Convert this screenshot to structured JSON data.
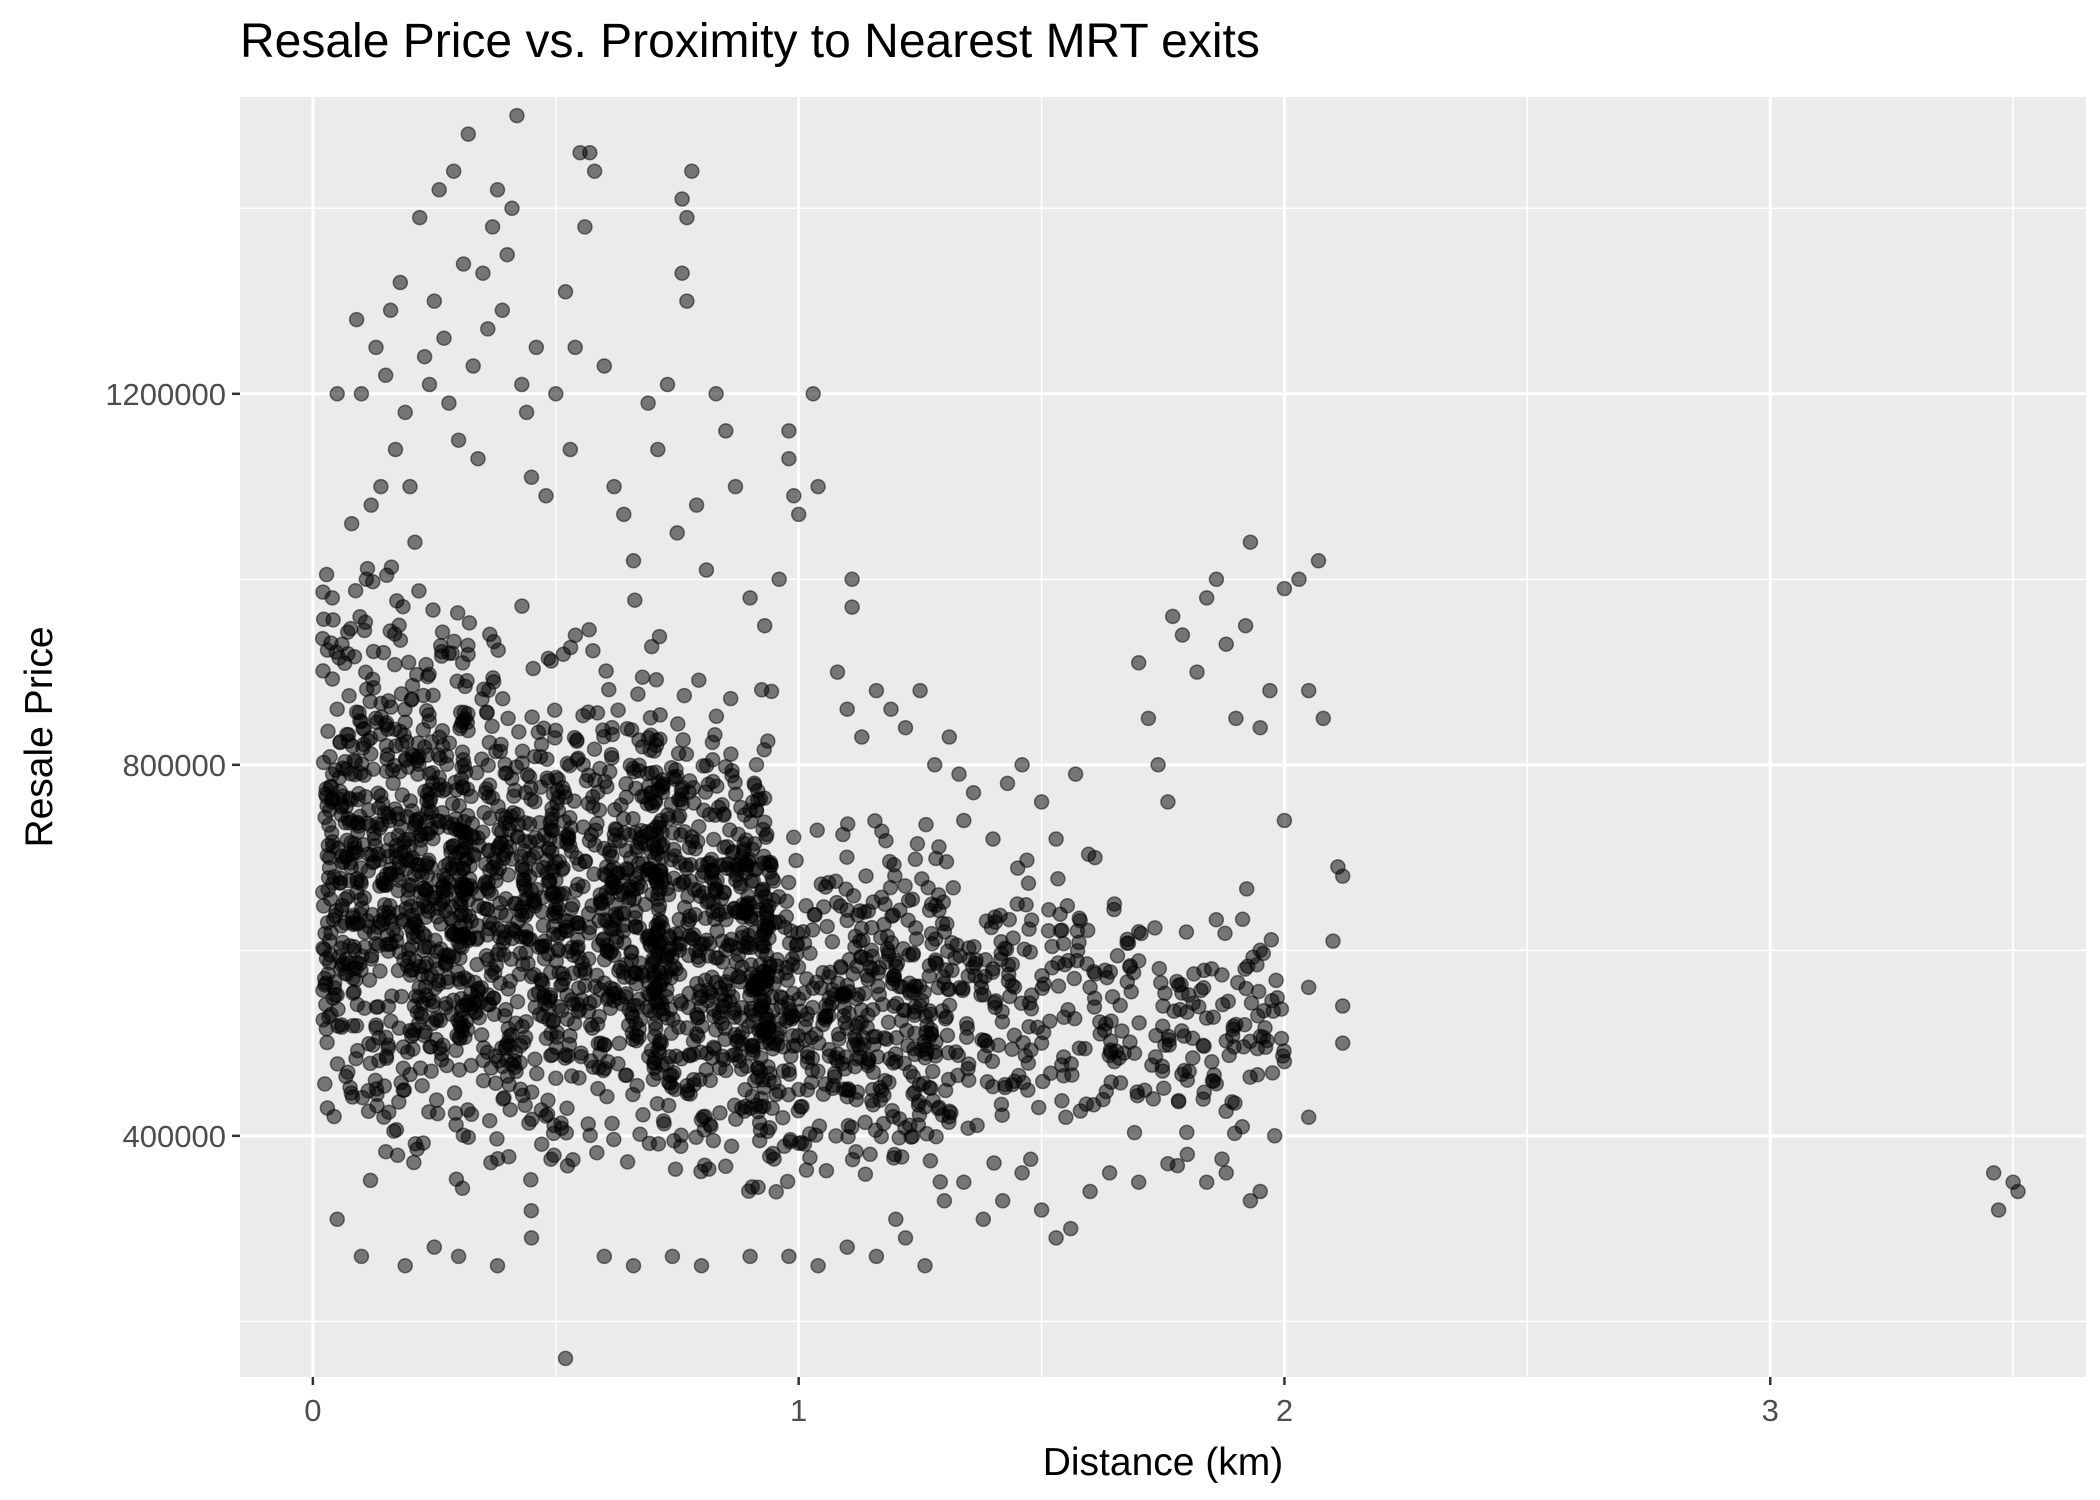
{
  "chart_data": {
    "type": "scatter",
    "title": "Resale Price vs. Proximity to Nearest MRT exits",
    "xlabel": "Distance (km)",
    "ylabel": "Resale Price",
    "xlim": [
      -0.15,
      3.65
    ],
    "ylim": [
      140000,
      1520000
    ],
    "x_ticks": [
      0,
      1,
      2,
      3
    ],
    "x_tick_labels": [
      "0",
      "1",
      "2",
      "3"
    ],
    "y_ticks": [
      400000,
      800000,
      1200000
    ],
    "y_tick_labels": [
      "400000",
      "800000",
      "1200000"
    ],
    "grid": true,
    "legend": "none",
    "point_color": "#000000",
    "point_alpha": 0.5,
    "panel_background": "#ebebeb",
    "grid_color": "#ffffff",
    "points": [
      [
        0.03,
        430000
      ],
      [
        0.04,
        980000
      ],
      [
        0.05,
        1200000
      ],
      [
        0.05,
        860000
      ],
      [
        0.06,
        930000
      ],
      [
        0.08,
        1060000
      ],
      [
        0.09,
        1280000
      ],
      [
        0.1,
        1200000
      ],
      [
        0.11,
        1000000
      ],
      [
        0.12,
        1080000
      ],
      [
        0.13,
        1250000
      ],
      [
        0.14,
        1100000
      ],
      [
        0.15,
        1220000
      ],
      [
        0.16,
        1290000
      ],
      [
        0.17,
        1140000
      ],
      [
        0.18,
        1320000
      ],
      [
        0.19,
        1180000
      ],
      [
        0.2,
        1100000
      ],
      [
        0.21,
        1040000
      ],
      [
        0.22,
        1390000
      ],
      [
        0.23,
        1240000
      ],
      [
        0.24,
        1210000
      ],
      [
        0.25,
        1300000
      ],
      [
        0.26,
        1420000
      ],
      [
        0.27,
        1260000
      ],
      [
        0.28,
        1190000
      ],
      [
        0.29,
        1440000
      ],
      [
        0.3,
        1150000
      ],
      [
        0.31,
        1340000
      ],
      [
        0.32,
        1480000
      ],
      [
        0.33,
        1230000
      ],
      [
        0.34,
        1130000
      ],
      [
        0.35,
        1330000
      ],
      [
        0.36,
        1270000
      ],
      [
        0.37,
        1380000
      ],
      [
        0.38,
        1420000
      ],
      [
        0.39,
        1290000
      ],
      [
        0.4,
        1350000
      ],
      [
        0.41,
        1400000
      ],
      [
        0.42,
        1500000
      ],
      [
        0.43,
        1210000
      ],
      [
        0.44,
        1180000
      ],
      [
        0.45,
        1110000
      ],
      [
        0.46,
        1250000
      ],
      [
        0.48,
        1090000
      ],
      [
        0.5,
        1200000
      ],
      [
        0.52,
        1310000
      ],
      [
        0.53,
        1140000
      ],
      [
        0.54,
        1250000
      ],
      [
        0.55,
        1460000
      ],
      [
        0.56,
        1380000
      ],
      [
        0.57,
        1460000
      ],
      [
        0.58,
        1440000
      ],
      [
        0.6,
        1230000
      ],
      [
        0.62,
        1100000
      ],
      [
        0.64,
        1070000
      ],
      [
        0.66,
        1020000
      ],
      [
        0.69,
        1190000
      ],
      [
        0.71,
        1140000
      ],
      [
        0.73,
        1210000
      ],
      [
        0.75,
        1050000
      ],
      [
        0.76,
        1410000
      ],
      [
        0.76,
        1330000
      ],
      [
        0.77,
        1300000
      ],
      [
        0.77,
        1390000
      ],
      [
        0.78,
        1440000
      ],
      [
        0.79,
        1080000
      ],
      [
        0.81,
        1010000
      ],
      [
        0.83,
        1200000
      ],
      [
        0.85,
        1160000
      ],
      [
        0.87,
        1100000
      ],
      [
        0.9,
        980000
      ],
      [
        0.93,
        950000
      ],
      [
        0.96,
        1000000
      ],
      [
        0.98,
        1160000
      ],
      [
        0.98,
        1130000
      ],
      [
        0.99,
        1090000
      ],
      [
        1.0,
        1070000
      ],
      [
        1.03,
        1200000
      ],
      [
        1.04,
        1100000
      ],
      [
        1.08,
        900000
      ],
      [
        1.1,
        860000
      ],
      [
        1.11,
        970000
      ],
      [
        1.11,
        1000000
      ],
      [
        1.13,
        830000
      ],
      [
        1.16,
        880000
      ],
      [
        1.19,
        860000
      ],
      [
        1.22,
        840000
      ],
      [
        1.25,
        880000
      ],
      [
        1.28,
        800000
      ],
      [
        1.31,
        830000
      ],
      [
        1.33,
        790000
      ],
      [
        1.34,
        740000
      ],
      [
        1.36,
        770000
      ],
      [
        1.4,
        720000
      ],
      [
        1.43,
        780000
      ],
      [
        1.46,
        800000
      ],
      [
        1.5,
        760000
      ],
      [
        1.53,
        720000
      ],
      [
        1.57,
        790000
      ],
      [
        1.61,
        700000
      ],
      [
        1.65,
        650000
      ],
      [
        1.7,
        910000
      ],
      [
        1.72,
        850000
      ],
      [
        1.74,
        800000
      ],
      [
        1.76,
        760000
      ],
      [
        1.77,
        960000
      ],
      [
        1.79,
        940000
      ],
      [
        1.82,
        900000
      ],
      [
        1.84,
        980000
      ],
      [
        1.86,
        1000000
      ],
      [
        1.88,
        930000
      ],
      [
        1.9,
        850000
      ],
      [
        1.92,
        950000
      ],
      [
        1.93,
        1040000
      ],
      [
        1.95,
        840000
      ],
      [
        1.97,
        880000
      ],
      [
        2.0,
        990000
      ],
      [
        2.03,
        1000000
      ],
      [
        2.05,
        880000
      ],
      [
        2.07,
        1020000
      ],
      [
        2.08,
        850000
      ],
      [
        2.11,
        690000
      ],
      [
        2.12,
        680000
      ],
      [
        2.12,
        540000
      ],
      [
        2.12,
        500000
      ],
      [
        2.1,
        610000
      ],
      [
        2.0,
        740000
      ],
      [
        2.05,
        420000
      ],
      [
        1.98,
        400000
      ],
      [
        1.95,
        340000
      ],
      [
        1.93,
        330000
      ],
      [
        1.88,
        360000
      ],
      [
        1.84,
        350000
      ],
      [
        1.8,
        380000
      ],
      [
        1.76,
        370000
      ],
      [
        1.7,
        350000
      ],
      [
        1.64,
        360000
      ],
      [
        1.6,
        340000
      ],
      [
        1.56,
        300000
      ],
      [
        1.53,
        290000
      ],
      [
        1.5,
        320000
      ],
      [
        1.46,
        360000
      ],
      [
        1.42,
        330000
      ],
      [
        1.38,
        310000
      ],
      [
        1.34,
        350000
      ],
      [
        1.3,
        330000
      ],
      [
        1.26,
        260000
      ],
      [
        1.22,
        290000
      ],
      [
        1.2,
        310000
      ],
      [
        1.16,
        270000
      ],
      [
        1.1,
        280000
      ],
      [
        1.04,
        260000
      ],
      [
        0.98,
        270000
      ],
      [
        0.9,
        270000
      ],
      [
        0.8,
        260000
      ],
      [
        0.74,
        270000
      ],
      [
        0.66,
        260000
      ],
      [
        0.6,
        270000
      ],
      [
        0.52,
        160000
      ],
      [
        0.45,
        290000
      ],
      [
        0.38,
        260000
      ],
      [
        0.3,
        270000
      ],
      [
        0.25,
        280000
      ],
      [
        0.19,
        260000
      ],
      [
        0.1,
        270000
      ],
      [
        0.05,
        310000
      ],
      [
        3.46,
        360000
      ],
      [
        3.47,
        320000
      ],
      [
        3.5,
        350000
      ],
      [
        3.51,
        340000
      ],
      [
        0.8,
        550000
      ],
      [
        0.85,
        600000
      ],
      [
        0.9,
        650000
      ],
      [
        0.95,
        500000
      ],
      [
        1.0,
        450000
      ],
      [
        1.05,
        520000
      ],
      [
        1.15,
        600000
      ],
      [
        1.2,
        480000
      ],
      [
        1.25,
        540000
      ],
      [
        1.3,
        620000
      ],
      [
        1.35,
        460000
      ],
      [
        1.4,
        580000
      ],
      [
        1.45,
        650000
      ],
      [
        1.5,
        500000
      ],
      [
        1.55,
        420000
      ],
      [
        1.6,
        560000
      ],
      [
        1.65,
        480000
      ],
      [
        1.7,
        620000
      ],
      [
        1.75,
        540000
      ],
      [
        1.8,
        460000
      ],
      [
        1.85,
        580000
      ],
      [
        1.9,
        520000
      ],
      [
        1.95,
        600000
      ],
      [
        2.0,
        480000
      ],
      [
        2.05,
        560000
      ]
    ],
    "dense_regions": [
      {
        "x_range": [
          0.02,
          0.32
        ],
        "y_range": [
          290000,
          1080000
        ],
        "count": 700
      },
      {
        "x_range": [
          0.3,
          0.72
        ],
        "y_range": [
          290000,
          1010000
        ],
        "count": 850
      },
      {
        "x_range": [
          0.7,
          0.95
        ],
        "y_range": [
          280000,
          950000
        ],
        "count": 500
      },
      {
        "x_range": [
          0.9,
          1.3
        ],
        "y_range": [
          280000,
          800000
        ],
        "count": 450
      },
      {
        "x_range": [
          1.3,
          1.6
        ],
        "y_range": [
          320000,
          750000
        ],
        "count": 160
      },
      {
        "x_range": [
          1.6,
          2.0
        ],
        "y_range": [
          350000,
          690000
        ],
        "count": 150
      }
    ]
  }
}
